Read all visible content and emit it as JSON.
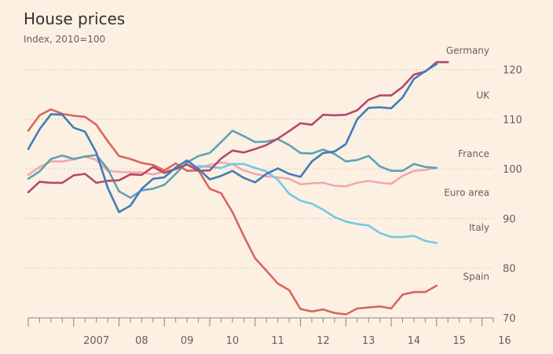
{
  "header": {
    "title": "House prices",
    "subtitle": "Index, 2010=100"
  },
  "chart_data": {
    "type": "line",
    "title": "House prices",
    "subtitle": "Index, 2010=100",
    "xlabel": "",
    "ylabel": "",
    "x_tick_labels": [
      "2007",
      "08",
      "09",
      "10",
      "11",
      "12",
      "13",
      "14",
      "15",
      "16"
    ],
    "x_tick_values": [
      2007,
      2008,
      2009,
      2010,
      2011,
      2012,
      2013,
      2014,
      2015,
      2016
    ],
    "y_ticks": [
      70,
      80,
      90,
      100,
      110,
      120
    ],
    "ylim": [
      70,
      122
    ],
    "xlim": [
      2006,
      2016.25
    ],
    "grid": "dotted-horizontal",
    "x": [
      2006,
      2006.25,
      2006.5,
      2006.75,
      2007,
      2007.25,
      2007.5,
      2007.75,
      2008,
      2008.25,
      2008.5,
      2008.75,
      2009,
      2009.25,
      2009.5,
      2009.75,
      2010,
      2010.25,
      2010.5,
      2010.75,
      2011,
      2011.25,
      2011.5,
      2011.75,
      2012,
      2012.25,
      2012.5,
      2012.75,
      2013,
      2013.25,
      2013.5,
      2013.75,
      2014,
      2014.25,
      2014.5,
      2014.75,
      2015,
      2015.25,
      2015.5,
      2015.75,
      2016
    ],
    "series": [
      {
        "name": "Germany",
        "color": "#b5486b",
        "values": [
          95.3,
          97.4,
          97.2,
          97.2,
          98.7,
          99.0,
          97.2,
          97.6,
          97.7,
          98.9,
          98.8,
          100.4,
          99.2,
          100.0,
          100.9,
          99.6,
          99.7,
          102.1,
          103.7,
          103.3,
          104.0,
          104.8,
          106.1,
          107.6,
          109.2,
          108.9,
          110.9,
          110.8,
          110.9,
          111.8,
          113.9,
          114.8,
          114.8,
          116.5,
          119.0,
          119.6,
          121.5,
          121.5,
          null,
          null,
          null
        ]
      },
      {
        "name": "UK",
        "color": "#3f7db8",
        "values": [
          104.0,
          108.0,
          111.0,
          110.9,
          108.3,
          107.5,
          103.3,
          96.2,
          91.3,
          92.6,
          96.0,
          98.0,
          98.3,
          100.3,
          101.7,
          100.0,
          97.9,
          98.6,
          99.6,
          98.2,
          97.3,
          99.0,
          100.1,
          99.0,
          98.4,
          101.5,
          103.2,
          103.5,
          105.0,
          110.0,
          112.3,
          112.4,
          112.2,
          114.4,
          118.1,
          119.7,
          121.1,
          null,
          null,
          null,
          null
        ]
      },
      {
        "name": "France",
        "color": "#5ba3b5",
        "values": [
          98.0,
          99.5,
          102.0,
          102.7,
          102.0,
          102.5,
          102.8,
          100.0,
          95.5,
          94.2,
          95.7,
          96.0,
          96.8,
          99.0,
          101.3,
          102.6,
          103.2,
          105.4,
          107.7,
          106.6,
          105.4,
          105.5,
          106.0,
          104.8,
          103.2,
          103.1,
          103.9,
          103.0,
          101.5,
          101.8,
          102.6,
          100.5,
          99.6,
          99.6,
          101.0,
          100.4,
          100.2,
          null,
          null,
          null,
          null
        ]
      },
      {
        "name": "Euro area",
        "color": "#f2a7b0",
        "values": [
          98.8,
          100.4,
          101.5,
          101.5,
          101.9,
          102.5,
          101.8,
          99.6,
          99.4,
          99.3,
          99.3,
          98.9,
          99.5,
          99.9,
          100.9,
          100.2,
          100.8,
          101.3,
          100.9,
          99.7,
          99.0,
          98.5,
          98.3,
          98.0,
          96.9,
          97.1,
          97.2,
          96.6,
          96.5,
          97.2,
          97.6,
          97.2,
          97.0,
          98.6,
          99.6,
          99.8,
          100.2,
          null,
          null,
          null,
          null
        ]
      },
      {
        "name": "Italy",
        "color": "#73c9e3",
        "values": [
          null,
          null,
          null,
          null,
          null,
          null,
          null,
          null,
          null,
          null,
          null,
          null,
          null,
          null,
          null,
          100.6,
          100.4,
          100.2,
          101.0,
          101.0,
          100.2,
          99.5,
          97.8,
          95.0,
          93.6,
          93.0,
          91.8,
          90.3,
          89.4,
          88.9,
          88.6,
          87.1,
          86.3,
          86.3,
          86.5,
          85.5,
          85.1,
          null,
          null,
          null,
          null
        ]
      },
      {
        "name": "Spain",
        "color": "#d9665b",
        "values": [
          107.7,
          110.8,
          112.0,
          111.1,
          110.7,
          110.5,
          108.9,
          105.6,
          102.6,
          102.0,
          101.2,
          100.8,
          99.7,
          101.1,
          99.6,
          99.7,
          96.0,
          95.1,
          91.3,
          86.5,
          82.0,
          79.5,
          76.9,
          75.6,
          71.8,
          71.3,
          71.7,
          71.0,
          70.7,
          71.9,
          72.1,
          72.3,
          71.9,
          74.7,
          75.2,
          75.2,
          76.5,
          null,
          null,
          null,
          null
        ]
      }
    ]
  }
}
